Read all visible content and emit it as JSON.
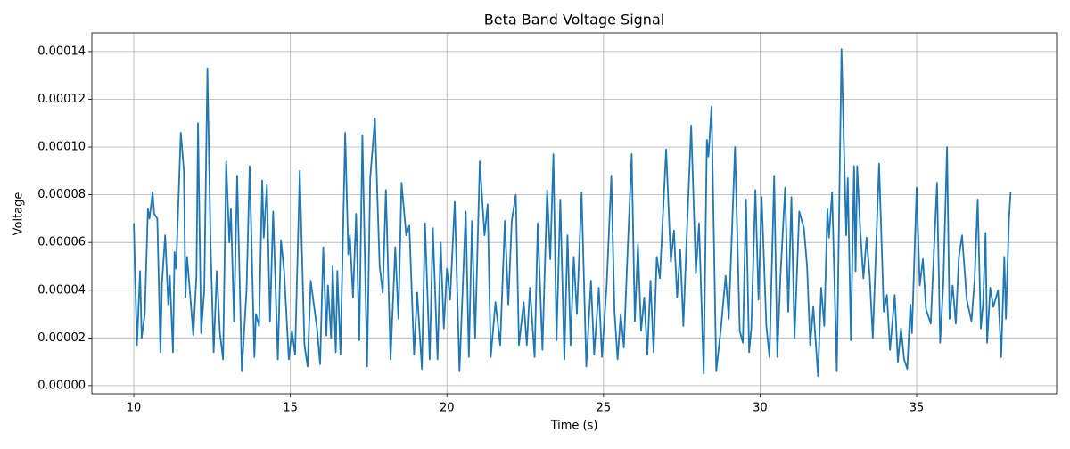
{
  "chart_data": {
    "type": "line",
    "title": "Beta Band Voltage Signal",
    "xlabel": "Time (s)",
    "ylabel": "Voltage",
    "color": "#1f77b4",
    "grid": true,
    "xlim": [
      8.66,
      39.47
    ],
    "ylim": [
      -3.4e-06,
      0.0001478
    ],
    "xticks": [
      10,
      15,
      20,
      25,
      30,
      35
    ],
    "yticks": [
      {
        "value": 0,
        "label": "0.00000"
      },
      {
        "value": 2e-05,
        "label": "0.00002"
      },
      {
        "value": 4e-05,
        "label": "0.00004"
      },
      {
        "value": 6e-05,
        "label": "0.00006"
      },
      {
        "value": 8e-05,
        "label": "0.00008"
      },
      {
        "value": 0.0001,
        "label": "0.00010"
      },
      {
        "value": 0.00012,
        "label": "0.00012"
      },
      {
        "value": 0.00014,
        "label": "0.00014"
      }
    ],
    "x": [
      10.0,
      10.1,
      10.2,
      10.25,
      10.35,
      10.45,
      10.5,
      10.6,
      10.65,
      10.75,
      10.85,
      10.9,
      11.0,
      11.1,
      11.15,
      11.25,
      11.3,
      11.35,
      11.5,
      11.6,
      11.65,
      11.7,
      11.8,
      11.9,
      12.0,
      12.05,
      12.15,
      12.25,
      12.35,
      12.45,
      12.55,
      12.65,
      12.75,
      12.85,
      12.95,
      13.05,
      13.1,
      13.2,
      13.3,
      13.45,
      13.6,
      13.7,
      13.85,
      13.9,
      14.0,
      14.1,
      14.15,
      14.25,
      14.35,
      14.45,
      14.6,
      14.7,
      14.8,
      14.95,
      15.05,
      15.15,
      15.3,
      15.45,
      15.55,
      15.65,
      15.75,
      15.85,
      15.95,
      16.05,
      16.15,
      16.2,
      16.3,
      16.35,
      16.45,
      16.5,
      16.6,
      16.75,
      16.85,
      16.9,
      17.0,
      17.1,
      17.2,
      17.3,
      17.45,
      17.55,
      17.7,
      17.85,
      17.95,
      18.05,
      18.2,
      18.35,
      18.45,
      18.55,
      18.7,
      18.8,
      18.95,
      19.05,
      19.2,
      19.3,
      19.45,
      19.55,
      19.7,
      19.8,
      19.9,
      20.0,
      20.1,
      20.25,
      20.4,
      20.6,
      20.7,
      20.8,
      20.9,
      21.05,
      21.2,
      21.3,
      21.4,
      21.55,
      21.7,
      21.85,
      21.96,
      22.07,
      22.2,
      22.3,
      22.45,
      22.55,
      22.65,
      22.8,
      22.9,
      23.05,
      23.2,
      23.3,
      23.4,
      23.5,
      23.62,
      23.75,
      23.85,
      23.95,
      24.05,
      24.15,
      24.3,
      24.45,
      24.6,
      24.7,
      24.85,
      24.95,
      25.1,
      25.25,
      25.35,
      25.45,
      25.55,
      25.65,
      25.75,
      25.9,
      26.0,
      26.1,
      26.2,
      26.3,
      26.4,
      26.5,
      26.6,
      26.7,
      26.8,
      27.0,
      27.15,
      27.25,
      27.35,
      27.45,
      27.55,
      27.65,
      27.8,
      27.95,
      28.05,
      28.2,
      28.3,
      28.35,
      28.45,
      28.6,
      28.75,
      28.9,
      29.0,
      29.2,
      29.35,
      29.45,
      29.55,
      29.65,
      29.72,
      29.85,
      29.95,
      30.05,
      30.2,
      30.3,
      30.45,
      30.55,
      30.65,
      30.8,
      30.9,
      31.0,
      31.1,
      31.25,
      31.4,
      31.5,
      31.6,
      31.7,
      31.85,
      31.95,
      32.05,
      32.15,
      32.2,
      32.3,
      32.45,
      32.6,
      32.75,
      32.8,
      32.9,
      33.0,
      33.05,
      33.1,
      33.2,
      33.3,
      33.4,
      33.5,
      33.6,
      33.8,
      33.95,
      34.05,
      34.15,
      34.3,
      34.4,
      34.5,
      34.6,
      34.7,
      34.8,
      34.85,
      35.0,
      35.1,
      35.2,
      35.3,
      35.45,
      35.65,
      35.75,
      35.85,
      35.97,
      36.05,
      36.15,
      36.25,
      36.35,
      36.45,
      36.6,
      36.75,
      36.85,
      36.95,
      37.05,
      37.12,
      37.2,
      37.25,
      37.35,
      37.45,
      37.6,
      37.7,
      37.8,
      37.85,
      37.95,
      38.0
    ],
    "values": [
      6.8e-05,
      1.7e-05,
      4.8e-05,
      2e-05,
      3e-05,
      7.4e-05,
      7e-05,
      8.1e-05,
      7.2e-05,
      7e-05,
      1.4e-05,
      4.3e-05,
      6.3e-05,
      3.4e-05,
      4.6e-05,
      1.4e-05,
      5.6e-05,
      4.9e-05,
      0.000106,
      9e-05,
      3.7e-05,
      5.4e-05,
      3.8e-05,
      2.1e-05,
      4.6e-05,
      0.00011,
      2.2e-05,
      4e-05,
      0.000133,
      6e-05,
      1.4e-05,
      4.8e-05,
      2.2e-05,
      1.1e-05,
      9.4e-05,
      6e-05,
      7.4e-05,
      2.7e-05,
      8.8e-05,
      6e-06,
      4e-05,
      9.2e-05,
      1.2e-05,
      3e-05,
      2.5e-05,
      8.6e-05,
      6.2e-05,
      8.4e-05,
      2.7e-05,
      7.3e-05,
      1.1e-05,
      6.1e-05,
      4.8e-05,
      1.1e-05,
      2.3e-05,
      1.3e-05,
      9e-05,
      1.7e-05,
      8e-06,
      4.4e-05,
      3.4e-05,
      2.4e-05,
      9e-06,
      5.8e-05,
      2.1e-05,
      4.2e-05,
      2e-05,
      5e-05,
      1.4e-05,
      4.8e-05,
      1.3e-05,
      0.000106,
      5.5e-05,
      6.3e-05,
      3.7e-05,
      7.2e-05,
      1.9e-05,
      0.000105,
      8e-06,
      8.7e-05,
      0.000112,
      5e-05,
      3.9e-05,
      8.2e-05,
      1.1e-05,
      5.8e-05,
      2.8e-05,
      8.5e-05,
      6.3e-05,
      6.7e-05,
      1.3e-05,
      3.9e-05,
      7e-06,
      6.8e-05,
      1.1e-05,
      6.6e-05,
      1.1e-05,
      6e-05,
      2.4e-05,
      4.9e-05,
      3.6e-05,
      7.7e-05,
      6e-06,
      7.3e-05,
      1.2e-05,
      6.9e-05,
      2e-05,
      9.4e-05,
      6.3e-05,
      7.6e-05,
      1.2e-05,
      3.5e-05,
      1.7e-05,
      6.9e-05,
      3.4e-05,
      6.9e-05,
      8e-05,
      1.7e-05,
      3.5e-05,
      1.7e-05,
      4.1e-05,
      1.2e-05,
      6.8e-05,
      1.5e-05,
      8.2e-05,
      5.3e-05,
      9.7e-05,
      1.9e-05,
      7.8e-05,
      1.1e-05,
      6.3e-05,
      1.7e-05,
      5.4e-05,
      3e-05,
      8.1e-05,
      8e-06,
      4.4e-05,
      1.3e-05,
      4.1e-05,
      1.2e-05,
      4.2e-05,
      8.8e-05,
      3.1e-05,
      1.1e-05,
      3e-05,
      1.6e-05,
      5e-05,
      9.7e-05,
      2.7e-05,
      5.9e-05,
      2.3e-05,
      3.7e-05,
      1.3e-05,
      4.4e-05,
      1.4e-05,
      5.4e-05,
      4.5e-05,
      9.9e-05,
      5.2e-05,
      6.5e-05,
      3.7e-05,
      5.7e-05,
      2.5e-05,
      6e-05,
      0.000109,
      4.7e-05,
      6.8e-05,
      5e-06,
      0.000103,
      9.6e-05,
      0.000117,
      6e-06,
      2.4e-05,
      4.6e-05,
      2.8e-05,
      0.0001,
      2.3e-05,
      1.8e-05,
      7.8e-05,
      1.4e-05,
      2.4e-05,
      8.2e-05,
      3.6e-05,
      7.9e-05,
      2.5e-05,
      1.2e-05,
      8.8e-05,
      1.2e-05,
      4.6e-05,
      8.3e-05,
      3.1e-05,
      7.9e-05,
      2e-05,
      7.3e-05,
      6.6e-05,
      5e-05,
      1.7e-05,
      3.3e-05,
      4e-06,
      4.1e-05,
      2.5e-05,
      7.4e-05,
      6.2e-05,
      8.1e-05,
      6e-06,
      0.000141,
      6.3e-05,
      8.7e-05,
      1.9e-05,
      9.2e-05,
      4.8e-05,
      9.2e-05,
      6.5e-05,
      4.5e-05,
      6.2e-05,
      4.6e-05,
      2e-05,
      9.3e-05,
      3.1e-05,
      3.8e-05,
      1.5e-05,
      3.8e-05,
      1e-05,
      2.4e-05,
      1.1e-05,
      7e-06,
      3.4e-05,
      2.2e-05,
      8.3e-05,
      4.2e-05,
      5.3e-05,
      3.2e-05,
      2.6e-05,
      8.5e-05,
      1.8e-05,
      4.2e-05,
      0.0001,
      2.8e-05,
      4.2e-05,
      2.6e-05,
      5.4e-05,
      6.3e-05,
      3.6e-05,
      2.7e-05,
      4.4e-05,
      7.8e-05,
      2.4e-05,
      3.4e-05,
      6.4e-05,
      1.8e-05,
      4.1e-05,
      3.3e-05,
      4e-05,
      1.2e-05,
      5.4e-05,
      2.8e-05,
      7e-05,
      8.1e-05
    ]
  }
}
